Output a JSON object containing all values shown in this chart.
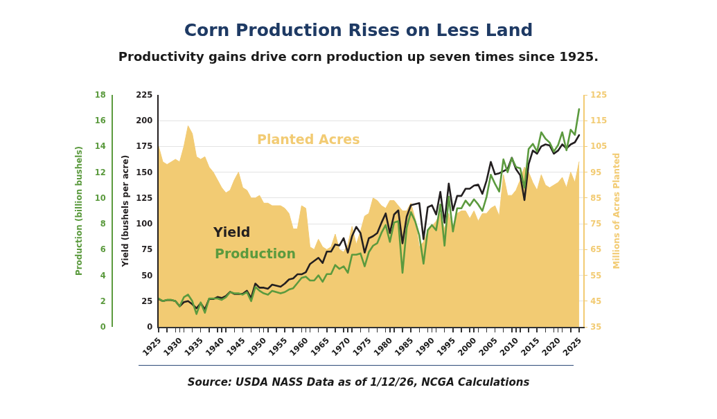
{
  "chart_data": {
    "type": "line",
    "title": "Corn Production Rises on Less Land",
    "subtitle": "Productivity gains drive corn production up seven times since 1925.",
    "ylabel": "Yield (bushels per acre)",
    "y2label": "Millions of Acres Planted",
    "y3label": "Production (billion bushels)",
    "annotations": [
      "Source: USDA NASS Data as of 1/12/26, NCGA Calculations"
    ],
    "x": [
      1925,
      1926,
      1927,
      1928,
      1929,
      1930,
      1931,
      1932,
      1933,
      1934,
      1935,
      1936,
      1937,
      1938,
      1939,
      1940,
      1941,
      1942,
      1943,
      1944,
      1945,
      1946,
      1947,
      1948,
      1949,
      1950,
      1951,
      1952,
      1953,
      1954,
      1955,
      1956,
      1957,
      1958,
      1959,
      1960,
      1961,
      1962,
      1963,
      1964,
      1965,
      1966,
      1967,
      1968,
      1969,
      1970,
      1971,
      1972,
      1973,
      1974,
      1975,
      1976,
      1977,
      1978,
      1979,
      1980,
      1981,
      1982,
      1983,
      1984,
      1985,
      1986,
      1987,
      1988,
      1989,
      1990,
      1991,
      1992,
      1993,
      1994,
      1995,
      1996,
      1997,
      1998,
      1999,
      2000,
      2001,
      2002,
      2003,
      2004,
      2005,
      2006,
      2007,
      2008,
      2009,
      2010,
      2011,
      2012,
      2013,
      2014,
      2015,
      2016,
      2017,
      2018,
      2019,
      2020,
      2021,
      2022,
      2023,
      2024,
      2025
    ],
    "series": [
      {
        "name": "Planted Acres",
        "type": "area",
        "color": "#f2cb73",
        "axis": "y2",
        "values": [
          105,
          99,
          98,
          99,
          100,
          99,
          105,
          113,
          110,
          101,
          100,
          101,
          97,
          95,
          92,
          89,
          87,
          88,
          92,
          95,
          89,
          88,
          85,
          85,
          86,
          83,
          83,
          82,
          82,
          82,
          81,
          79,
          73,
          73,
          82,
          81,
          66,
          65,
          69,
          66,
          65,
          66,
          71,
          65,
          64,
          67,
          74,
          67,
          72,
          78,
          79,
          85,
          84,
          82,
          81,
          84,
          84,
          82,
          80,
          80,
          83,
          77,
          66,
          68,
          72,
          74,
          76,
          79,
          73,
          79,
          72,
          79,
          80,
          80,
          77,
          80,
          76,
          79,
          79,
          81,
          82,
          78,
          94,
          86,
          86,
          88,
          92,
          97,
          95,
          91,
          88,
          94,
          90,
          89,
          90,
          91,
          93,
          89,
          95,
          91,
          99
        ]
      },
      {
        "name": "Yield",
        "color": "#231f20",
        "values": [
          27,
          25,
          26,
          26,
          25,
          20,
          24,
          25,
          22,
          18,
          23,
          17,
          27,
          27,
          29,
          28,
          30,
          34,
          32,
          32,
          32,
          35,
          28,
          42,
          38,
          38,
          37,
          41,
          40,
          39,
          42,
          46,
          47,
          51,
          51,
          53,
          61,
          64,
          67,
          62,
          73,
          73,
          80,
          79,
          86,
          72,
          88,
          97,
          91,
          72,
          86,
          88,
          91,
          101,
          110,
          91,
          109,
          113,
          81,
          107,
          118,
          119,
          120,
          85,
          116,
          118,
          109,
          131,
          101,
          139,
          113,
          127,
          127,
          134,
          134,
          137,
          138,
          129,
          142,
          160,
          148,
          149,
          151,
          153,
          164,
          153,
          147,
          123,
          158,
          171,
          168,
          175,
          177,
          176,
          168,
          171,
          177,
          173,
          177,
          179,
          186
        ]
      },
      {
        "name": "Production",
        "color": "#5b9a3e",
        "axis": "y3",
        "values": [
          2.2,
          2.0,
          2.1,
          2.1,
          2.0,
          1.6,
          2.3,
          2.5,
          2.0,
          1.0,
          1.9,
          1.1,
          2.2,
          2.2,
          2.2,
          2.1,
          2.3,
          2.7,
          2.6,
          2.6,
          2.5,
          2.7,
          2.0,
          3.1,
          2.8,
          2.6,
          2.5,
          2.8,
          2.7,
          2.6,
          2.7,
          2.9,
          3.0,
          3.4,
          3.8,
          3.9,
          3.6,
          3.6,
          4.0,
          3.5,
          4.1,
          4.1,
          4.8,
          4.5,
          4.7,
          4.2,
          5.6,
          5.6,
          5.7,
          4.7,
          5.8,
          6.3,
          6.5,
          7.3,
          7.9,
          6.6,
          8.1,
          8.2,
          4.2,
          7.7,
          8.9,
          8.2,
          7.1,
          4.9,
          7.5,
          7.9,
          7.5,
          9.5,
          6.3,
          10.1,
          7.4,
          9.2,
          9.2,
          9.8,
          9.4,
          9.9,
          9.5,
          9.0,
          10.1,
          11.8,
          11.1,
          10.5,
          13.0,
          12.0,
          13.1,
          12.4,
          12.3,
          10.8,
          13.8,
          14.2,
          13.6,
          15.1,
          14.6,
          14.3,
          13.6,
          14.1,
          15.1,
          13.7,
          15.3,
          14.9,
          16.9
        ]
      }
    ],
    "xlim": [
      1925,
      2026
    ],
    "xticks": [
      1925,
      {
        "value": 1927,
        "label": null
      },
      {
        "value": 1929,
        "label": null
      },
      1930,
      {
        "value": 1931,
        "label": null
      },
      {
        "value": 1933,
        "label": null
      },
      1935,
      {
        "value": 1937,
        "label": null
      },
      {
        "value": 1939,
        "label": null
      },
      1940,
      {
        "value": 1941,
        "label": null
      },
      {
        "value": 1943,
        "label": null
      },
      1945,
      {
        "value": 1947,
        "label": null
      },
      {
        "value": 1949,
        "label": null
      },
      1950,
      {
        "value": 1951,
        "label": null
      },
      {
        "value": 1953,
        "label": null
      },
      1955,
      {
        "value": 1957,
        "label": null
      },
      {
        "value": 1959,
        "label": null
      },
      1960,
      {
        "value": 1961,
        "label": null
      },
      {
        "value": 1963,
        "label": null
      },
      1965,
      {
        "value": 1967,
        "label": null
      },
      {
        "value": 1969,
        "label": null
      },
      1970,
      {
        "value": 1971,
        "label": null
      },
      {
        "value": 1973,
        "label": null
      },
      1975,
      {
        "value": 1977,
        "label": null
      },
      {
        "value": 1979,
        "label": null
      },
      1980,
      {
        "value": 1981,
        "label": null
      },
      {
        "value": 1983,
        "label": null
      },
      1985,
      {
        "value": 1987,
        "label": null
      },
      {
        "value": 1989,
        "label": null
      },
      1990,
      {
        "value": 1991,
        "label": null
      },
      {
        "value": 1993,
        "label": null
      },
      1995,
      {
        "value": 1997,
        "label": null
      },
      {
        "value": 1999,
        "label": null
      },
      2000,
      {
        "value": 2001,
        "label": null
      },
      {
        "value": 2003,
        "label": null
      },
      2005,
      {
        "value": 2007,
        "label": null
      },
      {
        "value": 2009,
        "label": null
      },
      2010,
      {
        "value": 2011,
        "label": null
      },
      {
        "value": 2013,
        "label": null
      },
      2015,
      {
        "value": 2017,
        "label": null
      },
      {
        "value": 2019,
        "label": null
      },
      2020,
      {
        "value": 2021,
        "label": null
      },
      {
        "value": 2023,
        "label": null
      },
      2025
    ],
    "ylim": [
      0,
      225
    ],
    "yticks": [
      0,
      25,
      50,
      75,
      100,
      125,
      150,
      175,
      200,
      225
    ],
    "y2lim": [
      35,
      125
    ],
    "y2ticks": [
      35,
      45,
      55,
      65,
      75,
      85,
      95,
      105,
      115,
      125
    ],
    "y3lim": [
      0,
      18
    ],
    "y3ticks": [
      0,
      2,
      4,
      6,
      8,
      10,
      12,
      14,
      16,
      18
    ],
    "grid": "y",
    "legend": false,
    "line_style": "solid"
  }
}
